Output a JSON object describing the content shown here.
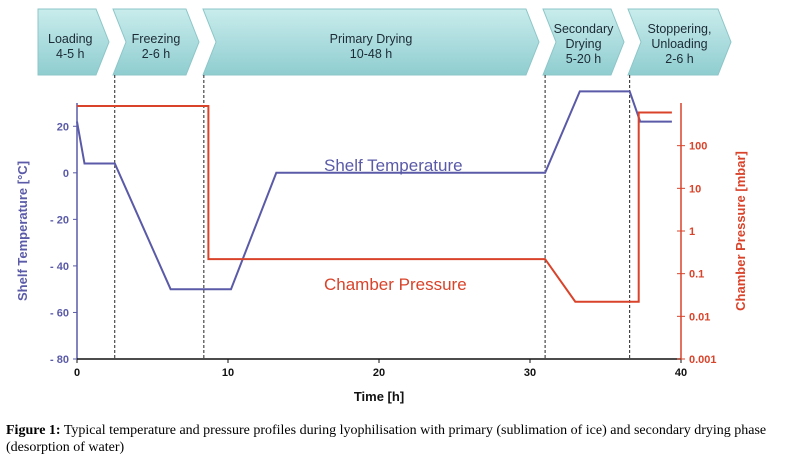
{
  "chart_data": {
    "type": "line",
    "xlabel": "Time [h]",
    "ylabel_left": "Shelf Temperature [°C]",
    "ylabel_right": "Chamber Pressure [mbar]",
    "xlim": [
      0,
      40
    ],
    "ylim_left": [
      -80,
      30
    ],
    "ylim_right_log": [
      0.001,
      1000
    ],
    "x_ticks": [
      "0",
      "10",
      "20",
      "30",
      "40"
    ],
    "x_tick_values": [
      0,
      10,
      20,
      30,
      40
    ],
    "y_left_ticks": [
      "20",
      "0",
      "- 20",
      "- 40",
      "- 60",
      "- 80"
    ],
    "y_left_tick_values": [
      20,
      0,
      -20,
      -40,
      -60,
      -80
    ],
    "y_right_ticks": [
      "100",
      "10",
      "1",
      "0.1",
      "0.01",
      "0.001"
    ],
    "y_right_tick_values": [
      100,
      10,
      1,
      0.1,
      0.01,
      0.001
    ],
    "phases": [
      {
        "name": "Loading",
        "duration": "4-5 h",
        "start": 0,
        "end": 2.5,
        "color": "#a6dcdc"
      },
      {
        "name": "Freezing",
        "duration": "2-6 h",
        "start": 2.5,
        "end": 8.4,
        "color": "#a6dcdc"
      },
      {
        "name": "Primary Drying",
        "duration": "10-48 h",
        "start": 8.4,
        "end": 31,
        "color": "#a6dcdc"
      },
      {
        "name": "Secondary Drying",
        "name_lines": [
          "Secondary",
          "Drying"
        ],
        "duration": "5-20 h",
        "start": 31,
        "end": 36.6,
        "color": "#a6dcdc"
      },
      {
        "name": "Stoppering, Unloading",
        "name_lines": [
          "Stoppering,",
          "Unloading"
        ],
        "duration": "2-6 h",
        "start": 36.6,
        "end": 40,
        "color": "#a6dcdc"
      }
    ],
    "phase_boundaries": [
      2.5,
      8.4,
      31,
      36.6
    ],
    "series": [
      {
        "name": "Shelf Temperature",
        "axis": "left",
        "color": "#5a5aa8",
        "x": [
          0,
          0.5,
          2.5,
          6.2,
          10.2,
          13.2,
          31,
          33.3,
          36.6,
          37.3,
          39.4
        ],
        "y": [
          22,
          4,
          4,
          -50,
          -50,
          0,
          0,
          35,
          35,
          22,
          22
        ]
      },
      {
        "name": "Chamber Pressure",
        "axis": "right",
        "color": "#d9432a",
        "x": [
          0,
          8.7,
          8.7,
          31,
          33,
          36.6,
          37.2,
          37.2,
          39.4
        ],
        "y": [
          850,
          850,
          0.22,
          0.22,
          0.022,
          0.022,
          0.022,
          600,
          600
        ]
      }
    ]
  },
  "caption": {
    "label": "Figure 1:",
    "text": " Typical temperature and pressure profiles during lyophilisation with primary (sublimation of ice) and secondary drying phase (desorption of water)"
  }
}
